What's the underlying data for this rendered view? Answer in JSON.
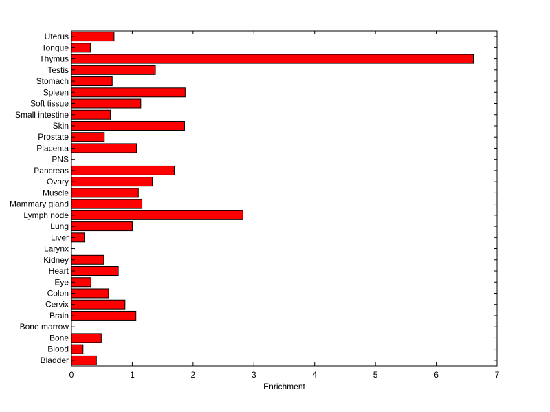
{
  "chart_data": {
    "type": "bar",
    "orientation": "horizontal",
    "xlabel": "Enrichment",
    "ylabel": "",
    "xlim": [
      0,
      7
    ],
    "xticks": [
      0,
      1,
      2,
      3,
      4,
      5,
      6,
      7
    ],
    "grid": false,
    "legend": "none",
    "bar_color": "#ff0000",
    "categories": [
      "Uterus",
      "Tongue",
      "Thymus",
      "Testis",
      "Stomach",
      "Spleen",
      "Soft tissue",
      "Small intestine",
      "Skin",
      "Prostate",
      "Placenta",
      "PNS",
      "Pancreas",
      "Ovary",
      "Muscle",
      "Mammary gland",
      "Lymph node",
      "Lung",
      "Liver",
      "Larynx",
      "Kidney",
      "Heart",
      "Eye",
      "Colon",
      "Cervix",
      "Brain",
      "Bone marrow",
      "Bone",
      "Blood",
      "Bladder"
    ],
    "values": [
      0.7,
      0.31,
      6.61,
      1.38,
      0.67,
      1.87,
      1.14,
      0.64,
      1.86,
      0.54,
      1.07,
      0,
      1.69,
      1.33,
      1.1,
      1.16,
      2.82,
      1.0,
      0.21,
      0,
      0.53,
      0.77,
      0.32,
      0.61,
      0.88,
      1.06,
      0,
      0.49,
      0.19,
      0.41
    ]
  }
}
